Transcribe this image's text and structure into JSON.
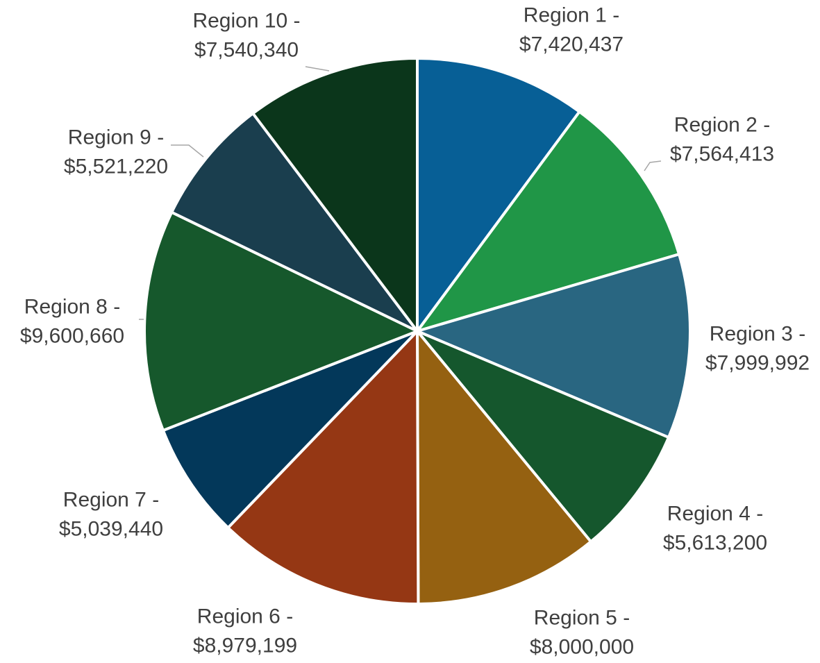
{
  "chart_data": {
    "type": "pie",
    "title": "",
    "legend": "none",
    "start_angle_deg": 0,
    "direction": "clockwise",
    "slices": [
      {
        "category": "Region 1",
        "value": 7420437,
        "value_label": "$7,420,437",
        "color": "#075f96"
      },
      {
        "category": "Region 2",
        "value": 7564413,
        "value_label": "$7,564,413",
        "color": "#209647"
      },
      {
        "category": "Region 3",
        "value": 7999992,
        "value_label": "$7,999,992",
        "color": "#296681"
      },
      {
        "category": "Region 4",
        "value": 5613200,
        "value_label": "$5,613,200",
        "color": "#15572d"
      },
      {
        "category": "Region 5",
        "value": 8000000,
        "value_label": "$8,000,000",
        "color": "#956111"
      },
      {
        "category": "Region 6",
        "value": 8979199,
        "value_label": "$8,979,199",
        "color": "#953714"
      },
      {
        "category": "Region 7",
        "value": 5039440,
        "value_label": "$5,039,440",
        "color": "#03385a"
      },
      {
        "category": "Region 8",
        "value": 9600660,
        "value_label": "$9,600,660",
        "color": "#16582c"
      },
      {
        "category": "Region 9",
        "value": 5521220,
        "value_label": "$5,521,220",
        "color": "#1a3e4e"
      },
      {
        "category": "Region 10",
        "value": 7540340,
        "value_label": "$7,540,340",
        "color": "#0b361b"
      }
    ]
  }
}
